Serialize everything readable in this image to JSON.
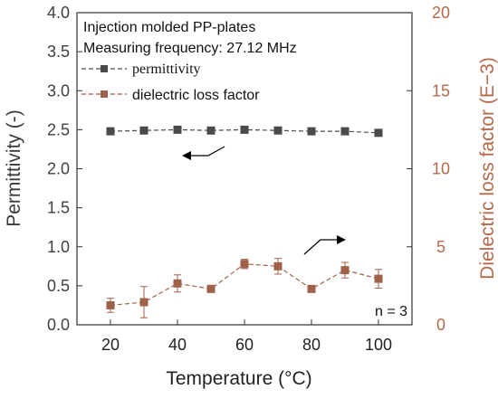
{
  "chart_data": {
    "type": "line",
    "x_label": "Temperature (°C)",
    "y_left_label": "Permittivity (-)",
    "y_right_label": "Dielectric loss factor (E−3)",
    "x_ticks": [
      "20",
      "40",
      "60",
      "80",
      "100"
    ],
    "y_left_ticks": [
      "0.0",
      "0.5",
      "1.0",
      "1.5",
      "2.0",
      "2.5",
      "3.0",
      "3.5",
      "4.0"
    ],
    "y_right_ticks": [
      "0",
      "5",
      "10",
      "15",
      "20"
    ],
    "x_range": [
      10,
      110
    ],
    "y_left_range": [
      0,
      4
    ],
    "y_right_range": [
      0,
      20
    ],
    "legend_position": "top-left",
    "annotations": {
      "line1": "Injection molded PP-plates",
      "line2": "Measuring frequency: 27.12 MHz",
      "sample_count": "n = 3"
    },
    "series": [
      {
        "name": "permittivity",
        "axis": "left",
        "color": "#4a4a4a",
        "x": [
          20,
          30,
          40,
          50,
          60,
          70,
          80,
          90,
          100
        ],
        "y": [
          2.48,
          2.49,
          2.5,
          2.49,
          2.5,
          2.49,
          2.48,
          2.48,
          2.46
        ]
      },
      {
        "name": "dielectric loss factor",
        "axis": "right",
        "color": "#a0614a",
        "x": [
          20,
          30,
          40,
          50,
          60,
          70,
          80,
          90,
          100
        ],
        "y": [
          1.25,
          1.45,
          2.65,
          2.3,
          3.9,
          3.75,
          2.3,
          3.5,
          2.95
        ],
        "err": [
          0.45,
          1.0,
          0.55,
          0.1,
          0.3,
          0.5,
          0.1,
          0.5,
          0.6
        ]
      }
    ]
  }
}
